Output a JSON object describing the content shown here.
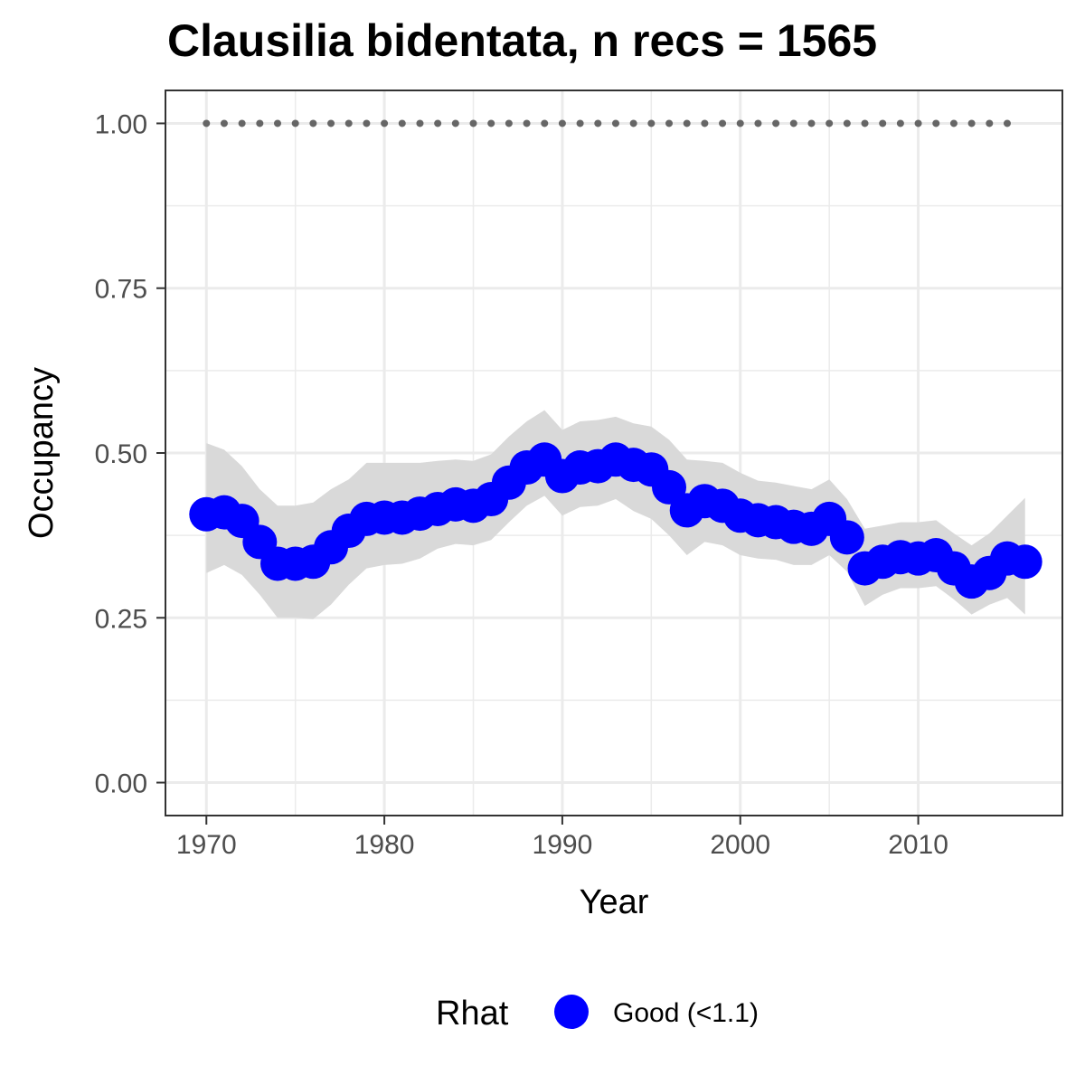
{
  "chart_data": {
    "type": "line",
    "title": "Clausilia bidentata, n recs = 1565",
    "xlabel": "Year",
    "ylabel": "Occupancy",
    "xlim": [
      1967.7,
      2018.1
    ],
    "ylim": [
      -0.05,
      1.05
    ],
    "x_ticks": [
      1970,
      1980,
      1990,
      2000,
      2010
    ],
    "x_tick_labels": [
      "1970",
      "1980",
      "1990",
      "2000",
      "2010"
    ],
    "y_ticks": [
      0,
      0.25,
      0.5,
      0.75,
      1
    ],
    "y_tick_labels": [
      "0.00",
      "0.25",
      "0.50",
      "0.75",
      "1.00"
    ],
    "grid": true,
    "colors": {
      "points": "#0000ff",
      "ribbon": "#d9d9d9",
      "reference": "#666666",
      "border": "#333333",
      "grid": "#ebebeb"
    },
    "series": [
      {
        "name": "Good (<1.1)",
        "x": [
          1970,
          1971,
          1972,
          1973,
          1974,
          1975,
          1976,
          1977,
          1978,
          1979,
          1980,
          1981,
          1982,
          1983,
          1984,
          1985,
          1986,
          1987,
          1988,
          1989,
          1990,
          1991,
          1992,
          1993,
          1994,
          1995,
          1996,
          1997,
          1998,
          1999,
          2000,
          2001,
          2002,
          2003,
          2004,
          2005,
          2006,
          2007,
          2008,
          2009,
          2010,
          2011,
          2012,
          2013,
          2014,
          2015,
          2016
        ],
        "y": [
          0.407,
          0.41,
          0.397,
          0.365,
          0.332,
          0.332,
          0.335,
          0.357,
          0.382,
          0.4,
          0.402,
          0.402,
          0.408,
          0.415,
          0.422,
          0.42,
          0.43,
          0.455,
          0.478,
          0.49,
          0.465,
          0.478,
          0.48,
          0.49,
          0.482,
          0.475,
          0.448,
          0.413,
          0.427,
          0.42,
          0.405,
          0.398,
          0.395,
          0.388,
          0.385,
          0.4,
          0.372,
          0.325,
          0.335,
          0.342,
          0.34,
          0.345,
          0.325,
          0.305,
          0.318,
          0.34,
          0.335
        ],
        "lower": [
          0.318,
          0.33,
          0.315,
          0.285,
          0.25,
          0.25,
          0.248,
          0.27,
          0.3,
          0.325,
          0.33,
          0.332,
          0.34,
          0.355,
          0.362,
          0.36,
          0.368,
          0.395,
          0.42,
          0.435,
          0.405,
          0.418,
          0.42,
          0.43,
          0.412,
          0.4,
          0.375,
          0.345,
          0.365,
          0.36,
          0.345,
          0.34,
          0.338,
          0.33,
          0.33,
          0.345,
          0.32,
          0.268,
          0.285,
          0.295,
          0.295,
          0.298,
          0.278,
          0.255,
          0.27,
          0.28,
          0.255
        ],
        "upper": [
          0.515,
          0.505,
          0.48,
          0.445,
          0.42,
          0.42,
          0.425,
          0.445,
          0.46,
          0.485,
          0.485,
          0.485,
          0.485,
          0.488,
          0.49,
          0.488,
          0.498,
          0.525,
          0.548,
          0.565,
          0.535,
          0.548,
          0.55,
          0.555,
          0.545,
          0.54,
          0.52,
          0.49,
          0.488,
          0.485,
          0.47,
          0.458,
          0.455,
          0.45,
          0.445,
          0.46,
          0.43,
          0.385,
          0.39,
          0.395,
          0.395,
          0.398,
          0.378,
          0.36,
          0.378,
          0.405,
          0.432
        ]
      }
    ],
    "reference_line": {
      "x_start": 1970,
      "x_end": 2015,
      "y": 1.0
    },
    "legend": {
      "position": "bottom",
      "title": "Rhat",
      "label": "Good (<1.1)"
    }
  }
}
